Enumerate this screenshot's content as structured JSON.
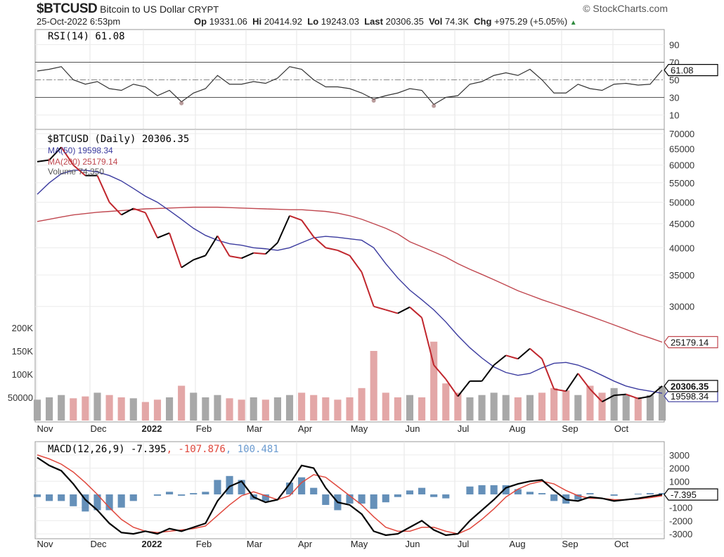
{
  "header": {
    "symbol": "$BTCUSD",
    "name": "Bitcoin to US Dollar",
    "exchange": "CRYPT",
    "datetime": "25-Oct-2022 6:53pm",
    "brand": "© StockCharts.com",
    "open_label": "Op",
    "open": "19331.06",
    "high_label": "Hi",
    "high": "20414.92",
    "low_label": "Lo",
    "low": "19243.03",
    "last_label": "Last",
    "last": "20306.35",
    "vol_label": "Vol",
    "vol": "74.3K",
    "chg_label": "Chg",
    "chg": "+975.29 (+5.05%)",
    "chg_icon": "up-triangle-icon"
  },
  "colors": {
    "price": "#000000",
    "down": "#c0262d",
    "ma50": "#3b3b9f",
    "ma200": "#c0474f",
    "volume": "#a8a8a8",
    "volume_down": "#e3a7a7",
    "macd": "#000000",
    "signal": "#e0483d",
    "histogram": "#3f74a8",
    "rsi_fill": "#8a5a5a"
  },
  "chart_data": [
    {
      "type": "line",
      "panel": "RSI",
      "legend": "RSI(14) 61.08",
      "last_label": "61.08",
      "ylim": [
        0,
        100
      ],
      "yticks": [
        "90",
        "70",
        "50",
        "30",
        "10"
      ],
      "reference_lines": [
        70,
        50,
        30
      ],
      "series": [
        {
          "name": "RSI(14)",
          "values": [
            60,
            62,
            65,
            50,
            45,
            48,
            40,
            38,
            45,
            42,
            32,
            38,
            25,
            35,
            40,
            55,
            45,
            45,
            48,
            46,
            52,
            65,
            62,
            50,
            42,
            42,
            40,
            35,
            28,
            32,
            35,
            40,
            38,
            22,
            30,
            32,
            45,
            48,
            55,
            58,
            55,
            62,
            50,
            35,
            35,
            45,
            40,
            38,
            45,
            46,
            44,
            45,
            61.08
          ]
        }
      ]
    },
    {
      "type": "line",
      "panel": "Price",
      "scale": "log",
      "ylim": [
        17000,
        72000
      ],
      "yticks": [
        "70000",
        "65000",
        "60000",
        "55000",
        "50000",
        "45000",
        "40000",
        "35000",
        "30000"
      ],
      "legend": {
        "price": "$BTCUSD (Daily) 20306.35",
        "ma50": "MA(50) 19598.34",
        "ma200": "MA(200) 25179.14",
        "volume": "Volume 74,350"
      },
      "last_labels": {
        "price": "20306.35",
        "ma50": "19598.34",
        "ma200": "25179.14"
      },
      "dates": [
        "2021-10-25",
        "2021-11-01",
        "2021-11-08",
        "2021-11-15",
        "2021-11-22",
        "2021-11-29",
        "2021-12-06",
        "2021-12-13",
        "2021-12-20",
        "2021-12-27",
        "2022-01-03",
        "2022-01-10",
        "2022-01-17",
        "2022-01-24",
        "2022-01-31",
        "2022-02-07",
        "2022-02-14",
        "2022-02-21",
        "2022-02-28",
        "2022-03-07",
        "2022-03-14",
        "2022-03-21",
        "2022-03-28",
        "2022-04-04",
        "2022-04-11",
        "2022-04-18",
        "2022-04-25",
        "2022-05-02",
        "2022-05-09",
        "2022-05-16",
        "2022-05-23",
        "2022-05-30",
        "2022-06-06",
        "2022-06-13",
        "2022-06-20",
        "2022-06-27",
        "2022-07-04",
        "2022-07-11",
        "2022-07-18",
        "2022-07-25",
        "2022-08-01",
        "2022-08-08",
        "2022-08-15",
        "2022-08-22",
        "2022-08-29",
        "2022-09-05",
        "2022-09-12",
        "2022-09-19",
        "2022-09-26",
        "2022-10-03",
        "2022-10-10",
        "2022-10-17",
        "2022-10-24"
      ],
      "series": [
        {
          "name": "$BTCUSD",
          "values": [
            61000,
            61500,
            65500,
            60000,
            57000,
            57000,
            50000,
            47000,
            48500,
            47500,
            42000,
            43000,
            36300,
            37700,
            38500,
            42400,
            38400,
            38000,
            39000,
            38800,
            41000,
            46800,
            45800,
            42200,
            40000,
            39500,
            38500,
            35500,
            30000,
            29500,
            29000,
            29900,
            28400,
            22500,
            21000,
            19300,
            20800,
            20800,
            22500,
            23600,
            23200,
            24400,
            23200,
            20000,
            19800,
            21600,
            20000,
            18800,
            19400,
            19500,
            19100,
            19300,
            20306.35
          ]
        },
        {
          "name": "MA(50)",
          "values": [
            52000,
            55000,
            57500,
            58500,
            58500,
            58000,
            57000,
            55500,
            53500,
            51500,
            50000,
            48000,
            46000,
            44000,
            42500,
            41500,
            40800,
            40500,
            40000,
            39800,
            39500,
            40000,
            41000,
            42000,
            42300,
            42100,
            41800,
            41500,
            40000,
            37000,
            34500,
            32500,
            31000,
            29500,
            27800,
            26000,
            24500,
            23300,
            22300,
            21700,
            21400,
            21600,
            22200,
            22700,
            22800,
            22500,
            22000,
            21400,
            20800,
            20300,
            20000,
            19800,
            19598.34
          ]
        },
        {
          "name": "MA(200)",
          "values": [
            45500,
            46000,
            46500,
            47000,
            47300,
            47600,
            47800,
            48000,
            48200,
            48400,
            48500,
            48600,
            48700,
            48800,
            48800,
            48800,
            48700,
            48600,
            48500,
            48400,
            48300,
            48200,
            48200,
            48000,
            47800,
            47400,
            46800,
            46000,
            45000,
            44000,
            42800,
            41200,
            40200,
            39200,
            38200,
            37000,
            36000,
            35100,
            34200,
            33300,
            32400,
            31700,
            31000,
            30400,
            29800,
            29200,
            28600,
            28000,
            27400,
            26800,
            26200,
            25700,
            25179.14
          ]
        }
      ]
    },
    {
      "type": "bar",
      "panel": "Volume",
      "ylim": [
        0,
        210000
      ],
      "yticks": [
        "200K",
        "150K",
        "100K",
        "50000"
      ],
      "series": [
        {
          "name": "Volume",
          "values": [
            45000,
            50000,
            55000,
            48000,
            52000,
            60000,
            55000,
            50000,
            48000,
            40000,
            45000,
            50000,
            75000,
            60000,
            50000,
            55000,
            48000,
            45000,
            50000,
            45000,
            50000,
            55000,
            60000,
            55000,
            50000,
            45000,
            50000,
            70000,
            150000,
            60000,
            50000,
            55000,
            50000,
            170000,
            80000,
            60000,
            50000,
            55000,
            60000,
            55000,
            50000,
            55000,
            60000,
            70000,
            65000,
            55000,
            75000,
            60000,
            70000,
            55000,
            50000,
            55000,
            74350
          ]
        }
      ]
    },
    {
      "type": "line",
      "panel": "MACD",
      "legend": {
        "main": "MACD(12,26,9) -7.395",
        "signal": ", -107.876",
        "hist": ", 100.481"
      },
      "last_label": "-7.395",
      "ylim": [
        -3500,
        3500
      ],
      "yticks": [
        "3000",
        "2000",
        "1000",
        "-1000",
        "-2000",
        "-3000"
      ],
      "series": [
        {
          "name": "MACD",
          "values": [
            2800,
            2200,
            1800,
            800,
            -400,
            -1200,
            -2200,
            -2900,
            -3000,
            -2800,
            -3000,
            -2600,
            -2800,
            -2500,
            -2200,
            -500,
            600,
            1000,
            -200,
            -600,
            -400,
            800,
            2200,
            2000,
            500,
            -600,
            -800,
            -1500,
            -2800,
            -3100,
            -3000,
            -2500,
            -2000,
            -2700,
            -3100,
            -3000,
            -2000,
            -1200,
            -400,
            500,
            800,
            1000,
            1100,
            300,
            -400,
            -500,
            -200,
            -300,
            -500,
            -400,
            -300,
            -150,
            -7.395
          ]
        },
        {
          "name": "Signal",
          "values": [
            3000,
            2700,
            2300,
            1700,
            900,
            0,
            -1000,
            -1900,
            -2500,
            -2800,
            -2900,
            -2800,
            -2700,
            -2600,
            -2400,
            -1600,
            -800,
            -100,
            200,
            -100,
            -400,
            -100,
            900,
            1500,
            1300,
            600,
            -100,
            -800,
            -1700,
            -2500,
            -2800,
            -2800,
            -2500,
            -2500,
            -2800,
            -3000,
            -2600,
            -1900,
            -1100,
            -200,
            400,
            800,
            1000,
            800,
            300,
            -100,
            -300,
            -300,
            -400,
            -400,
            -350,
            -250,
            -107.876
          ]
        }
      ]
    }
  ],
  "x_axis": {
    "labels": [
      "Nov",
      "Dec",
      "2022",
      "Feb",
      "Mar",
      "Apr",
      "May",
      "Jun",
      "Jul",
      "Aug",
      "Sep",
      "Oct"
    ]
  }
}
